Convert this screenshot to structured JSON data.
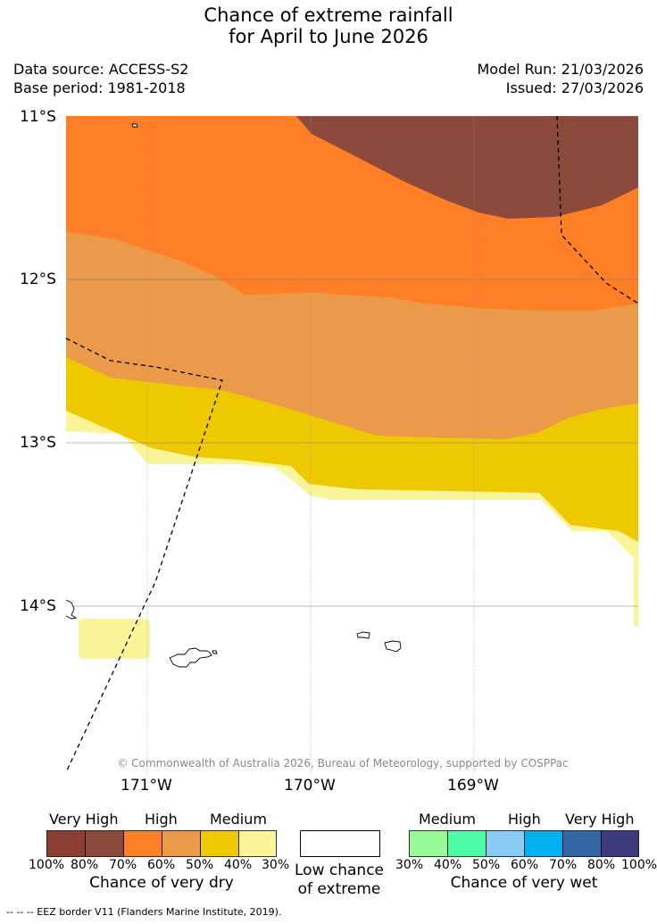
{
  "title": {
    "line1": "Chance of extreme rainfall",
    "line2": "for April to June 2026"
  },
  "meta": {
    "data_source": "Data source: ACCESS-S2",
    "base_period": "Base period: 1981-2018",
    "model_run": "Model Run: 21/03/2026",
    "issued": "Issued: 27/03/2026"
  },
  "map": {
    "lat_labels": [
      "11°S",
      "12°S",
      "13°S",
      "14°S"
    ],
    "lon_labels": [
      "171°W",
      "170°W",
      "169°W"
    ],
    "credit": "© Commonwealth of Australia 2026, Bureau of Meteorology, supported by COSPPac",
    "colors": {
      "very_high_dry": "#8b4a3c",
      "high_dry": "#ff7f27",
      "mid_dry": "#eb9a4a",
      "medium_dry": "#eec900",
      "low_dry": "#fbf59a"
    }
  },
  "legend": {
    "dry": {
      "categories": [
        "Very High",
        "High",
        "Medium"
      ],
      "colors": [
        "#8e3f33",
        "#8b4a3c",
        "#ff7f27",
        "#eb9a4a",
        "#eec900",
        "#fbf59a"
      ],
      "ticks": [
        "100%",
        "80%",
        "70%",
        "60%",
        "50%",
        "40%",
        "30%"
      ],
      "label": "Chance of very dry"
    },
    "neutral": {
      "label_line1": "Low chance",
      "label_line2": "of extreme",
      "color": "#ffffff"
    },
    "wet": {
      "categories": [
        "Medium",
        "High",
        "Very High"
      ],
      "colors": [
        "#98fb98",
        "#4dfaa6",
        "#87cbf6",
        "#00b0ef",
        "#3465a4",
        "#3b3b7e"
      ],
      "ticks": [
        "30%",
        "40%",
        "50%",
        "60%",
        "70%",
        "80%",
        "100%"
      ],
      "label": "Chance of very wet"
    }
  },
  "footer": {
    "eez_note": "-- -- -- EEZ border V11 (Flanders Marine Institute, 2019)."
  }
}
